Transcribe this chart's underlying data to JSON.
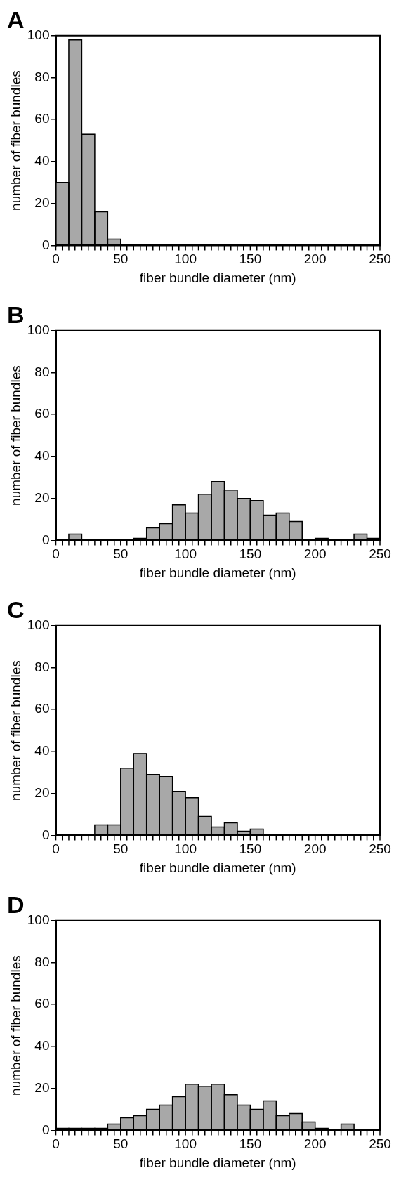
{
  "chart_data": [
    {
      "type": "histogram",
      "title": "A",
      "xlabel": "fiber bundle diameter (nm)",
      "ylabel": "number of fiber bundles",
      "color": "#a8a8a8",
      "bins": [
        0,
        10,
        20,
        30,
        40,
        50,
        60,
        70,
        80,
        90,
        100,
        110,
        120,
        130,
        140,
        150,
        160,
        170,
        180,
        190,
        200,
        210,
        220,
        230,
        240,
        250
      ],
      "values": [
        30,
        98,
        53,
        16,
        3,
        0,
        0,
        0,
        0,
        0,
        0,
        0,
        0,
        0,
        0,
        0,
        0,
        0,
        0,
        0,
        0,
        0,
        0,
        0,
        0
      ],
      "xlim": [
        0,
        250
      ],
      "ylim": [
        0,
        100
      ],
      "yticks": [
        0,
        20,
        40,
        60,
        80,
        100
      ],
      "xticks": [
        0,
        {
          "value": 10,
          "label": null
        },
        {
          "value": 20,
          "label": null
        },
        {
          "value": 30,
          "label": null
        },
        {
          "value": 40,
          "label": null
        },
        50,
        {
          "value": 60,
          "label": null
        },
        {
          "value": 70,
          "label": null
        },
        {
          "value": 80,
          "label": null
        },
        {
          "value": 90,
          "label": null
        },
        100,
        {
          "value": 110,
          "label": null
        },
        {
          "value": 120,
          "label": null
        },
        {
          "value": 130,
          "label": null
        },
        {
          "value": 140,
          "label": null
        },
        150,
        {
          "value": 160,
          "label": null
        },
        {
          "value": 170,
          "label": null
        },
        {
          "value": 180,
          "label": null
        },
        {
          "value": 190,
          "label": null
        },
        200,
        {
          "value": 210,
          "label": null
        },
        {
          "value": 220,
          "label": null
        },
        {
          "value": 230,
          "label": null
        },
        {
          "value": 240,
          "label": null
        },
        250
      ]
    },
    {
      "type": "histogram",
      "title": "B",
      "xlabel": "fiber bundle diameter (nm)",
      "ylabel": "number of fiber bundles",
      "color": "#a8a8a8",
      "bins": [
        0,
        10,
        20,
        30,
        40,
        50,
        60,
        70,
        80,
        90,
        100,
        110,
        120,
        130,
        140,
        150,
        160,
        170,
        180,
        190,
        200,
        210,
        220,
        230,
        240,
        250
      ],
      "values": [
        0,
        3,
        0,
        0,
        0,
        0,
        1,
        6,
        8,
        17,
        13,
        22,
        28,
        24,
        20,
        19,
        12,
        13,
        9,
        0,
        1,
        0,
        0,
        3,
        1
      ],
      "xlim": [
        0,
        250
      ],
      "ylim": [
        0,
        100
      ],
      "yticks": [
        0,
        20,
        40,
        60,
        80,
        100
      ],
      "xticks": [
        0,
        {
          "value": 10,
          "label": null
        },
        {
          "value": 20,
          "label": null
        },
        {
          "value": 30,
          "label": null
        },
        {
          "value": 40,
          "label": null
        },
        50,
        {
          "value": 60,
          "label": null
        },
        {
          "value": 70,
          "label": null
        },
        {
          "value": 80,
          "label": null
        },
        {
          "value": 90,
          "label": null
        },
        100,
        {
          "value": 110,
          "label": null
        },
        {
          "value": 120,
          "label": null
        },
        {
          "value": 130,
          "label": null
        },
        {
          "value": 140,
          "label": null
        },
        150,
        {
          "value": 160,
          "label": null
        },
        {
          "value": 170,
          "label": null
        },
        {
          "value": 180,
          "label": null
        },
        {
          "value": 190,
          "label": null
        },
        200,
        {
          "value": 210,
          "label": null
        },
        {
          "value": 220,
          "label": null
        },
        {
          "value": 230,
          "label": null
        },
        {
          "value": 240,
          "label": null
        },
        250
      ]
    },
    {
      "type": "histogram",
      "title": "C",
      "xlabel": "fiber bundle diameter (nm)",
      "ylabel": "number of fiber bundles",
      "color": "#a8a8a8",
      "bins": [
        0,
        10,
        20,
        30,
        40,
        50,
        60,
        70,
        80,
        90,
        100,
        110,
        120,
        130,
        140,
        150,
        160,
        170,
        180,
        190,
        200,
        210,
        220,
        230,
        240,
        250
      ],
      "values": [
        0,
        0,
        0,
        5,
        5,
        32,
        39,
        29,
        28,
        21,
        18,
        9,
        4,
        6,
        2,
        3,
        0,
        0,
        0,
        0,
        0,
        0,
        0,
        0,
        0
      ],
      "xlim": [
        0,
        250
      ],
      "ylim": [
        0,
        100
      ],
      "yticks": [
        0,
        20,
        40,
        60,
        80,
        100
      ],
      "xticks": [
        0,
        {
          "value": 10,
          "label": null
        },
        {
          "value": 20,
          "label": null
        },
        {
          "value": 30,
          "label": null
        },
        {
          "value": 40,
          "label": null
        },
        50,
        {
          "value": 60,
          "label": null
        },
        {
          "value": 70,
          "label": null
        },
        {
          "value": 80,
          "label": null
        },
        {
          "value": 90,
          "label": null
        },
        100,
        {
          "value": 110,
          "label": null
        },
        {
          "value": 120,
          "label": null
        },
        {
          "value": 130,
          "label": null
        },
        {
          "value": 140,
          "label": null
        },
        150,
        {
          "value": 160,
          "label": null
        },
        {
          "value": 170,
          "label": null
        },
        {
          "value": 180,
          "label": null
        },
        {
          "value": 190,
          "label": null
        },
        200,
        {
          "value": 210,
          "label": null
        },
        {
          "value": 220,
          "label": null
        },
        {
          "value": 230,
          "label": null
        },
        {
          "value": 240,
          "label": null
        },
        250
      ]
    },
    {
      "type": "histogram",
      "title": "D",
      "xlabel": "fiber bundle diameter (nm)",
      "ylabel": "number of fiber bundles",
      "color": "#a8a8a8",
      "bins": [
        0,
        10,
        20,
        30,
        40,
        50,
        60,
        70,
        80,
        90,
        100,
        110,
        120,
        130,
        140,
        150,
        160,
        170,
        180,
        190,
        200,
        210,
        220,
        230,
        240,
        250
      ],
      "values": [
        1,
        1,
        1,
        1,
        3,
        6,
        7,
        10,
        12,
        16,
        22,
        21,
        22,
        17,
        12,
        10,
        14,
        7,
        8,
        4,
        1,
        0,
        3,
        0,
        0
      ],
      "xlim": [
        0,
        250
      ],
      "ylim": [
        0,
        100
      ],
      "yticks": [
        0,
        20,
        40,
        60,
        80,
        100
      ],
      "xticks": [
        0,
        {
          "value": 10,
          "label": null
        },
        {
          "value": 20,
          "label": null
        },
        {
          "value": 30,
          "label": null
        },
        {
          "value": 40,
          "label": null
        },
        50,
        {
          "value": 60,
          "label": null
        },
        {
          "value": 70,
          "label": null
        },
        {
          "value": 80,
          "label": null
        },
        {
          "value": 90,
          "label": null
        },
        100,
        {
          "value": 110,
          "label": null
        },
        {
          "value": 120,
          "label": null
        },
        {
          "value": 130,
          "label": null
        },
        {
          "value": 140,
          "label": null
        },
        150,
        {
          "value": 160,
          "label": null
        },
        {
          "value": 170,
          "label": null
        },
        {
          "value": 180,
          "label": null
        },
        {
          "value": 190,
          "label": null
        },
        200,
        {
          "value": 210,
          "label": null
        },
        {
          "value": 220,
          "label": null
        },
        {
          "value": 230,
          "label": null
        },
        {
          "value": 240,
          "label": null
        },
        250
      ]
    }
  ]
}
